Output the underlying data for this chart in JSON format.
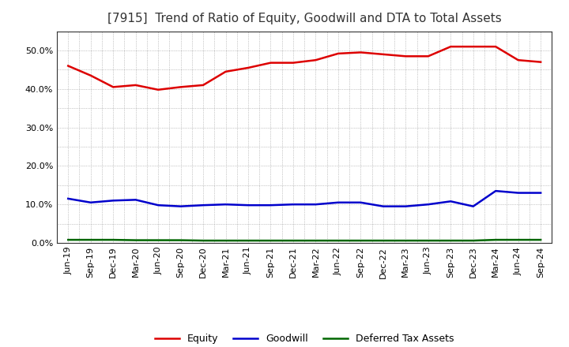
{
  "title": "[7915]  Trend of Ratio of Equity, Goodwill and DTA to Total Assets",
  "x_labels": [
    "Jun-19",
    "Sep-19",
    "Dec-19",
    "Mar-20",
    "Jun-20",
    "Sep-20",
    "Dec-20",
    "Mar-21",
    "Jun-21",
    "Sep-21",
    "Dec-21",
    "Mar-22",
    "Jun-22",
    "Sep-22",
    "Dec-22",
    "Mar-23",
    "Jun-23",
    "Sep-23",
    "Dec-23",
    "Mar-24",
    "Jun-24",
    "Sep-24"
  ],
  "equity": [
    46.0,
    43.5,
    40.5,
    41.0,
    39.8,
    40.5,
    41.0,
    44.5,
    45.5,
    46.8,
    46.8,
    47.5,
    49.2,
    49.5,
    49.0,
    48.5,
    48.5,
    51.0,
    51.0,
    51.0,
    47.5,
    47.0
  ],
  "goodwill": [
    11.5,
    10.5,
    11.0,
    11.2,
    9.8,
    9.5,
    9.8,
    10.0,
    9.8,
    9.8,
    10.0,
    10.0,
    10.5,
    10.5,
    9.5,
    9.5,
    10.0,
    10.8,
    9.5,
    13.5,
    13.0,
    13.0
  ],
  "dta": [
    0.8,
    0.8,
    0.8,
    0.7,
    0.7,
    0.7,
    0.6,
    0.6,
    0.6,
    0.6,
    0.6,
    0.6,
    0.6,
    0.6,
    0.6,
    0.6,
    0.6,
    0.6,
    0.6,
    0.8,
    0.8,
    0.8
  ],
  "equity_color": "#dd0000",
  "goodwill_color": "#0000cc",
  "dta_color": "#006600",
  "ylim": [
    0.0,
    55.0
  ],
  "yticks": [
    0.0,
    10.0,
    20.0,
    30.0,
    40.0,
    50.0
  ],
  "background_color": "#ffffff",
  "plot_bg_color": "#ffffff",
  "grid_color": "#999999",
  "title_fontsize": 11,
  "tick_fontsize": 8,
  "legend_labels": [
    "Equity",
    "Goodwill",
    "Deferred Tax Assets"
  ]
}
